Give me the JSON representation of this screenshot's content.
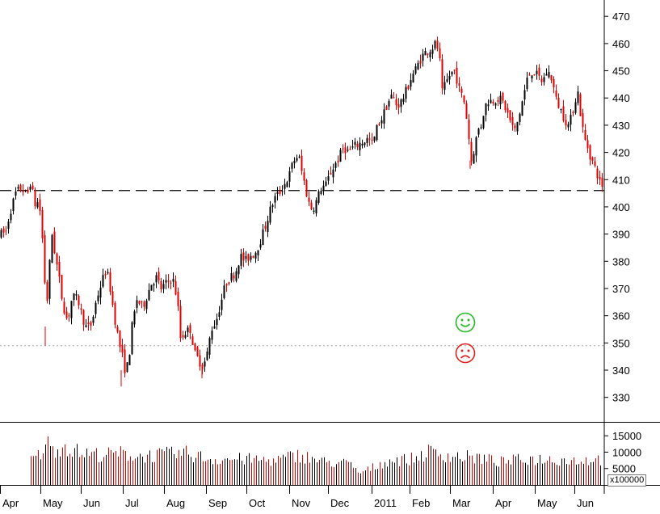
{
  "chart_data": {
    "type": "candlestick",
    "price_axis": {
      "ticks": [
        330,
        340,
        350,
        360,
        370,
        380,
        390,
        400,
        410,
        420,
        430,
        440,
        450,
        460,
        470
      ],
      "range": [
        321,
        476
      ]
    },
    "volume_axis": {
      "ticks": [
        5000,
        10000,
        15000
      ],
      "unit_label": "x100000",
      "range": [
        0,
        19000
      ]
    },
    "months": [
      "Apr",
      "May",
      "Jun",
      "Jul",
      "Aug",
      "Sep",
      "Oct",
      "Nov",
      "Dec",
      "2011",
      "Feb",
      "Mar",
      "Apr",
      "May",
      "Jun"
    ],
    "reference_lines": {
      "dashed_level": 406,
      "dotted_level": 349
    },
    "price_path": [
      [
        0,
        390
      ],
      [
        6,
        391
      ],
      [
        10,
        397
      ],
      [
        18,
        405
      ],
      [
        25,
        407
      ],
      [
        32,
        404
      ],
      [
        36,
        409
      ],
      [
        42,
        401
      ],
      [
        47,
        402
      ],
      [
        52,
        385
      ],
      [
        56,
        360
      ],
      [
        58,
        372
      ],
      [
        63,
        390
      ],
      [
        67,
        382
      ],
      [
        71,
        375
      ],
      [
        76,
        365
      ],
      [
        82,
        358
      ],
      [
        88,
        367
      ],
      [
        95,
        366
      ],
      [
        100,
        360
      ],
      [
        106,
        355
      ],
      [
        112,
        357
      ],
      [
        118,
        366
      ],
      [
        124,
        372
      ],
      [
        130,
        377
      ],
      [
        134,
        372
      ],
      [
        140,
        360
      ],
      [
        146,
        350
      ],
      [
        150,
        345
      ],
      [
        154,
        339
      ],
      [
        158,
        344
      ],
      [
        162,
        356
      ],
      [
        168,
        366
      ],
      [
        175,
        363
      ],
      [
        180,
        367
      ],
      [
        186,
        372
      ],
      [
        192,
        374
      ],
      [
        198,
        370
      ],
      [
        205,
        372
      ],
      [
        212,
        374
      ],
      [
        218,
        366
      ],
      [
        222,
        352
      ],
      [
        228,
        354
      ],
      [
        234,
        355
      ],
      [
        240,
        346
      ],
      [
        246,
        343
      ],
      [
        250,
        341
      ],
      [
        255,
        346
      ],
      [
        260,
        355
      ],
      [
        266,
        358
      ],
      [
        272,
        365
      ],
      [
        278,
        372
      ],
      [
        284,
        374
      ],
      [
        290,
        376
      ],
      [
        296,
        382
      ],
      [
        302,
        380
      ],
      [
        308,
        382
      ],
      [
        314,
        383
      ],
      [
        320,
        387
      ],
      [
        326,
        392
      ],
      [
        332,
        398
      ],
      [
        338,
        403
      ],
      [
        344,
        405
      ],
      [
        350,
        408
      ],
      [
        356,
        411
      ],
      [
        362,
        417
      ],
      [
        368,
        419
      ],
      [
        372,
        413
      ],
      [
        376,
        408
      ],
      [
        380,
        402
      ],
      [
        385,
        399
      ],
      [
        390,
        402
      ],
      [
        396,
        407
      ],
      [
        402,
        408
      ],
      [
        407,
        412
      ],
      [
        412,
        415
      ],
      [
        418,
        418
      ],
      [
        424,
        422
      ],
      [
        430,
        420
      ],
      [
        436,
        422
      ],
      [
        442,
        423
      ],
      [
        448,
        424
      ],
      [
        454,
        425
      ],
      [
        460,
        423
      ],
      [
        466,
        430
      ],
      [
        472,
        433
      ],
      [
        478,
        438
      ],
      [
        484,
        441
      ],
      [
        490,
        437
      ],
      [
        496,
        439
      ],
      [
        502,
        443
      ],
      [
        508,
        448
      ],
      [
        514,
        451
      ],
      [
        520,
        455
      ],
      [
        526,
        457
      ],
      [
        532,
        458
      ],
      [
        538,
        460
      ],
      [
        542,
        457
      ],
      [
        546,
        442
      ],
      [
        550,
        445
      ],
      [
        556,
        449
      ],
      [
        562,
        450
      ],
      [
        566,
        444
      ],
      [
        570,
        441
      ],
      [
        574,
        438
      ],
      [
        578,
        428
      ],
      [
        582,
        417
      ],
      [
        586,
        422
      ],
      [
        590,
        428
      ],
      [
        594,
        430
      ],
      [
        598,
        436
      ],
      [
        602,
        439
      ],
      [
        608,
        439
      ],
      [
        614,
        440
      ],
      [
        620,
        439
      ],
      [
        626,
        435
      ],
      [
        632,
        430
      ],
      [
        636,
        428
      ],
      [
        640,
        432
      ],
      [
        646,
        440
      ],
      [
        652,
        448
      ],
      [
        658,
        450
      ],
      [
        664,
        448
      ],
      [
        670,
        446
      ],
      [
        676,
        450
      ],
      [
        682,
        447
      ],
      [
        686,
        440
      ],
      [
        692,
        436
      ],
      [
        698,
        432
      ],
      [
        702,
        430
      ],
      [
        706,
        433
      ],
      [
        710,
        439
      ],
      [
        714,
        442
      ],
      [
        718,
        432
      ],
      [
        722,
        425
      ],
      [
        726,
        422
      ],
      [
        730,
        418
      ],
      [
        734,
        415
      ],
      [
        738,
        412
      ],
      [
        742,
        408
      ]
    ],
    "volume_profile": [
      [
        0,
        0
      ],
      [
        36,
        0
      ],
      [
        38,
        9000
      ],
      [
        50,
        10500
      ],
      [
        56,
        16500
      ],
      [
        62,
        12000
      ],
      [
        70,
        13000
      ],
      [
        80,
        13500
      ],
      [
        100,
        11000
      ],
      [
        130,
        10500
      ],
      [
        150,
        11000
      ],
      [
        170,
        10000
      ],
      [
        200,
        10500
      ],
      [
        230,
        11000
      ],
      [
        260,
        9000
      ],
      [
        300,
        9000
      ],
      [
        340,
        8500
      ],
      [
        370,
        10500
      ],
      [
        400,
        8000
      ],
      [
        430,
        7500
      ],
      [
        446,
        4000
      ],
      [
        460,
        6000
      ],
      [
        480,
        8500
      ],
      [
        510,
        9000
      ],
      [
        530,
        11500
      ],
      [
        560,
        10000
      ],
      [
        590,
        9500
      ],
      [
        620,
        8000
      ],
      [
        650,
        9000
      ],
      [
        680,
        9000
      ],
      [
        710,
        8500
      ],
      [
        745,
        9000
      ]
    ]
  }
}
